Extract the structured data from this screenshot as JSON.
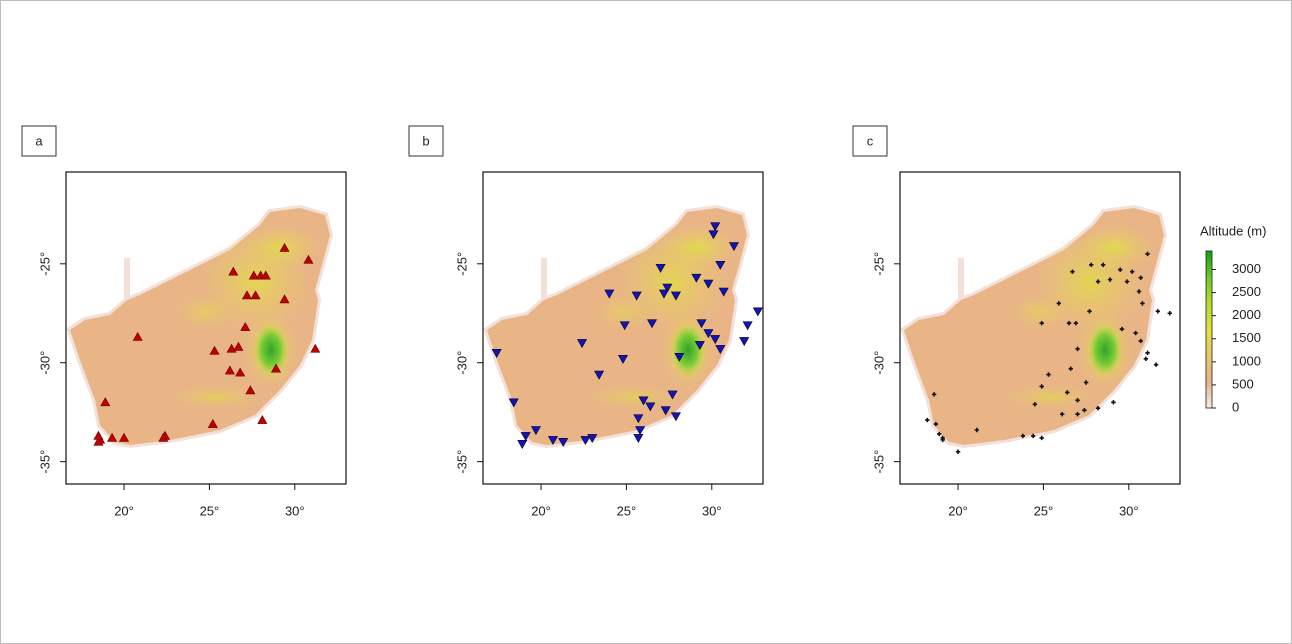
{
  "chart_data": [
    {
      "type": "map",
      "label": "a",
      "xlim": [
        16.6,
        33.0
      ],
      "ylim": [
        -36.13,
        -20.36
      ],
      "xticks": [
        {
          "value": 20,
          "label": "20°"
        },
        {
          "value": 25,
          "label": "25°"
        },
        {
          "value": 30,
          "label": "30°"
        }
      ],
      "yticks": [
        {
          "value": -25,
          "label": "-25°"
        },
        {
          "value": -30,
          "label": "-30°"
        },
        {
          "value": -35,
          "label": "-35°"
        }
      ],
      "series": [
        {
          "marker": "triangle-up",
          "color": "#c00000",
          "x": [
            29.4,
            30.8,
            26.4,
            27.6,
            28.0,
            28.3,
            27.7,
            27.2,
            29.4,
            31.2,
            20.8,
            27.1,
            25.3,
            26.3,
            26.7,
            26.2,
            26.8,
            28.9,
            27.4,
            18.9,
            28.1,
            25.2,
            22.4,
            22.3,
            19.3,
            20.0,
            18.6,
            18.5,
            18.5
          ],
          "y": [
            -24.2,
            -24.8,
            -25.4,
            -25.6,
            -25.6,
            -25.6,
            -26.6,
            -26.6,
            -26.8,
            -29.3,
            -28.7,
            -28.2,
            -29.4,
            -29.3,
            -29.2,
            -30.4,
            -30.5,
            -30.3,
            -31.4,
            -32.0,
            -32.9,
            -33.1,
            -33.7,
            -33.8,
            -33.8,
            -33.8,
            -33.9,
            -34.0,
            -33.7
          ]
        }
      ]
    },
    {
      "type": "map",
      "label": "b",
      "xlim": [
        16.6,
        33.0
      ],
      "ylim": [
        -36.13,
        -20.36
      ],
      "xticks": [
        {
          "value": 20,
          "label": "20°"
        },
        {
          "value": 25,
          "label": "25°"
        },
        {
          "value": 30,
          "label": "30°"
        }
      ],
      "yticks": [
        {
          "value": -25,
          "label": "-25°"
        },
        {
          "value": -30,
          "label": "-30°"
        },
        {
          "value": -35,
          "label": "-35°"
        }
      ],
      "series": [
        {
          "marker": "triangle-down",
          "color": "#1414b4",
          "x": [
            30.2,
            31.3,
            30.1,
            30.5,
            27.0,
            29.1,
            29.8,
            27.4,
            27.2,
            27.9,
            30.7,
            24.0,
            25.6,
            26.5,
            24.9,
            29.4,
            29.8,
            30.2,
            32.7,
            32.1,
            31.9,
            29.3,
            30.5,
            28.1,
            22.4,
            24.8,
            23.4,
            27.7,
            26.0,
            26.4,
            27.3,
            27.9,
            25.7,
            25.8,
            18.4,
            19.7,
            19.1,
            20.7,
            21.3,
            22.6,
            23.0,
            25.7,
            18.9,
            17.4
          ],
          "y": [
            -23.1,
            -24.1,
            -23.5,
            -25.05,
            -25.2,
            -25.7,
            -26.0,
            -26.2,
            -26.5,
            -26.6,
            -26.4,
            -26.5,
            -26.6,
            -28.0,
            -28.1,
            -28.0,
            -28.5,
            -28.8,
            -27.4,
            -28.1,
            -28.9,
            -29.1,
            -29.3,
            -29.7,
            -29.0,
            -29.8,
            -30.6,
            -31.6,
            -31.9,
            -32.2,
            -32.4,
            -32.7,
            -32.8,
            -33.4,
            -32.0,
            -33.4,
            -33.7,
            -33.9,
            -34.0,
            -33.9,
            -33.8,
            -33.8,
            -34.1,
            -29.5
          ]
        }
      ]
    },
    {
      "type": "map",
      "label": "c",
      "xlim": [
        16.6,
        33.0
      ],
      "ylim": [
        -36.13,
        -20.36
      ],
      "xticks": [
        {
          "value": 20,
          "label": "20°"
        },
        {
          "value": 25,
          "label": "25°"
        },
        {
          "value": 30,
          "label": "30°"
        }
      ],
      "yticks": [
        {
          "value": -25,
          "label": "-25°"
        },
        {
          "value": -30,
          "label": "-30°"
        },
        {
          "value": -35,
          "label": "-35°"
        }
      ],
      "series": [
        {
          "marker": "plus",
          "color": "#111111",
          "x": [
            31.1,
            26.7,
            27.8,
            28.5,
            29.5,
            30.2,
            30.7,
            28.2,
            28.9,
            29.9,
            30.6,
            31.7,
            32.4,
            30.8,
            27.7,
            26.9,
            26.5,
            29.6,
            30.4,
            30.7,
            31.1,
            31.0,
            27.0,
            26.6,
            27.5,
            26.4,
            27.0,
            27.4,
            27.0,
            28.2,
            29.1,
            24.5,
            24.9,
            25.9,
            24.4,
            24.9,
            23.8,
            21.1,
            19.1,
            20.0,
            18.2,
            18.7,
            18.9,
            19.1,
            18.6,
            31.6,
            26.1,
            25.3,
            24.9
          ],
          "y": [
            -24.5,
            -25.4,
            -25.05,
            -25.05,
            -25.3,
            -25.4,
            -25.7,
            -25.9,
            -25.8,
            -25.9,
            -26.4,
            -27.4,
            -27.5,
            -27.0,
            -27.4,
            -28.0,
            -28.0,
            -28.3,
            -28.5,
            -28.9,
            -29.5,
            -29.8,
            -29.3,
            -30.3,
            -31.0,
            -31.5,
            -31.9,
            -32.4,
            -32.6,
            -32.3,
            -32.0,
            -32.1,
            -28.0,
            -27.0,
            -33.7,
            -33.8,
            -33.7,
            -33.4,
            -33.9,
            -34.5,
            -32.9,
            -33.1,
            -33.6,
            -33.8,
            -31.6,
            -30.1,
            -32.6,
            -30.6,
            -31.2
          ]
        }
      ],
      "colorbar": {
        "title": "Altitude (m)",
        "lim": [
          0,
          3400
        ],
        "ticks": [
          0,
          500,
          1000,
          1500,
          2000,
          2500,
          3000
        ],
        "colors": [
          "#f7ecec",
          "#e8b487",
          "#e6c86a",
          "#e4e23c",
          "#b8dc2c",
          "#6cc828",
          "#12a012"
        ]
      }
    }
  ]
}
